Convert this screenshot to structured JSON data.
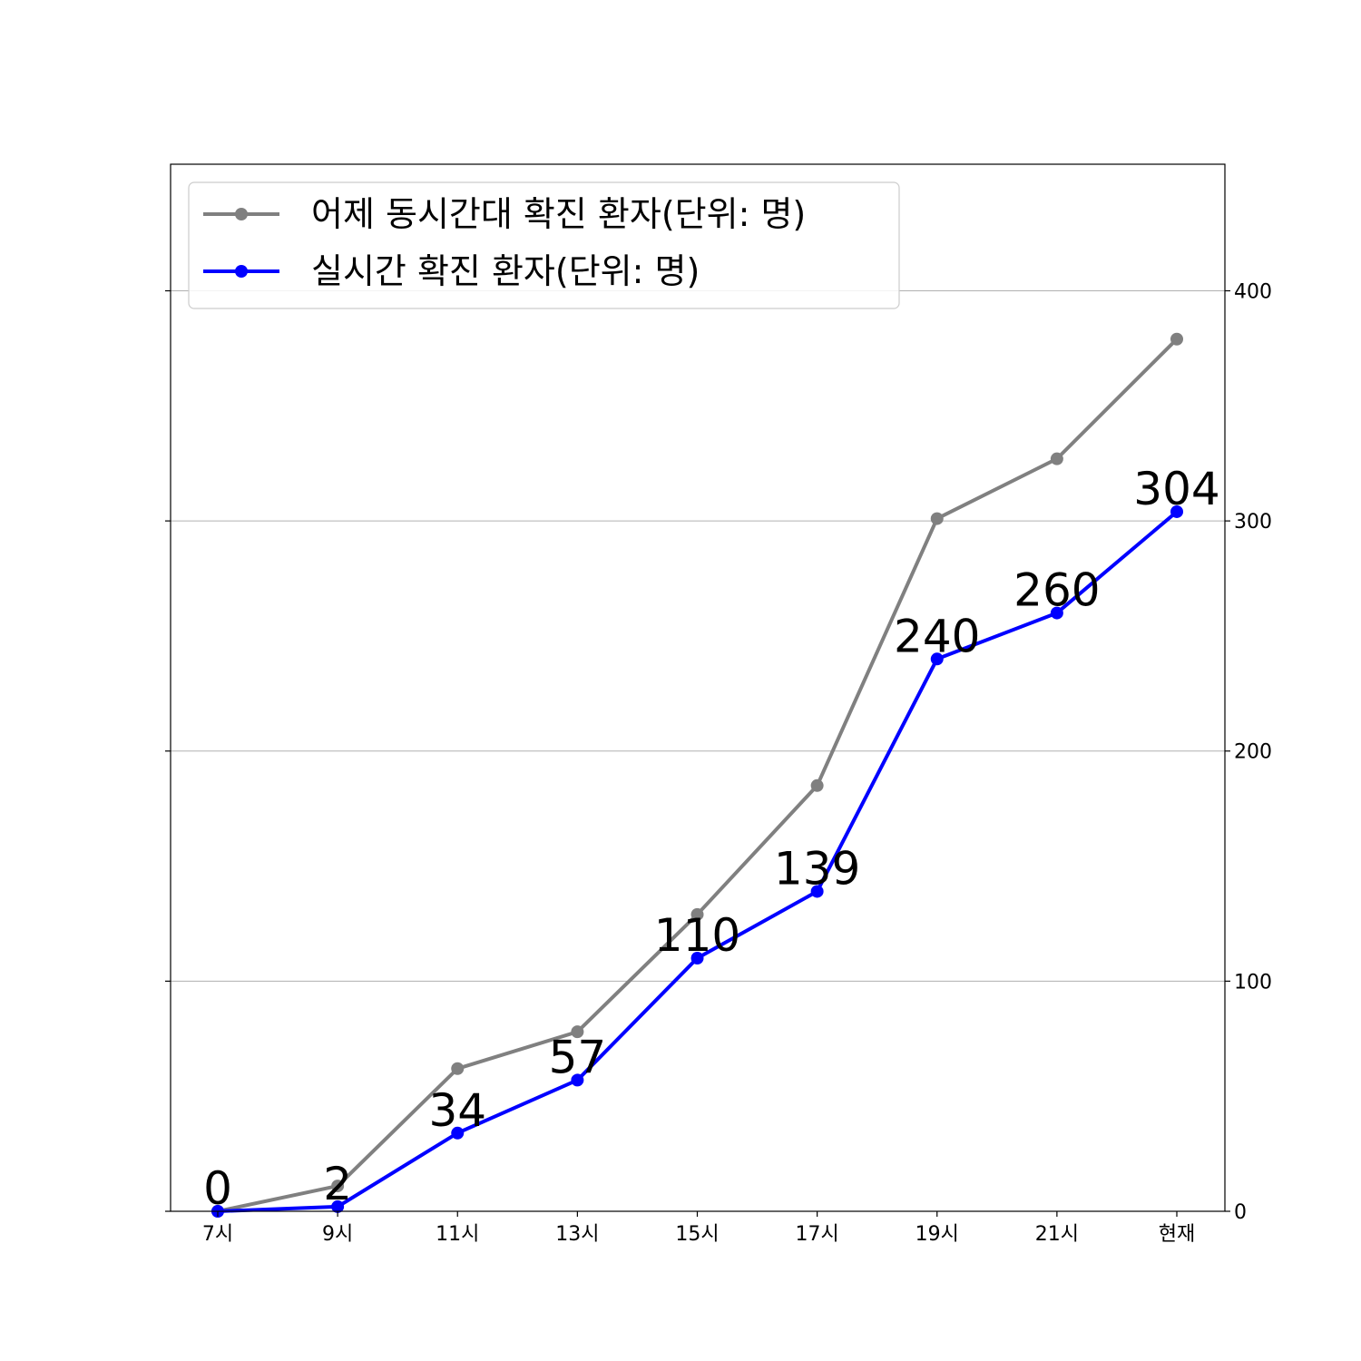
{
  "chart_data": {
    "type": "line",
    "title": "",
    "xlabel": "",
    "ylabel": "",
    "categories": [
      "7시",
      "9시",
      "11시",
      "13시",
      "15시",
      "17시",
      "19시",
      "21시",
      "현재"
    ],
    "series": [
      {
        "name": "어제 동시간대 확진 환자(단위: 명)",
        "color": "#808080",
        "values": [
          0,
          11,
          62,
          78,
          129,
          185,
          301,
          327,
          379
        ],
        "show_labels": false
      },
      {
        "name": "실시간 확진 환자(단위: 명)",
        "color": "#0000ff",
        "values": [
          0,
          2,
          34,
          57,
          110,
          139,
          240,
          260,
          304
        ],
        "show_labels": true
      }
    ],
    "ylim": [
      0,
      455
    ],
    "yticks": [
      0,
      100,
      200,
      300,
      400
    ],
    "y_axis_side": "right",
    "grid": "horizontal",
    "legend": "top-left"
  }
}
